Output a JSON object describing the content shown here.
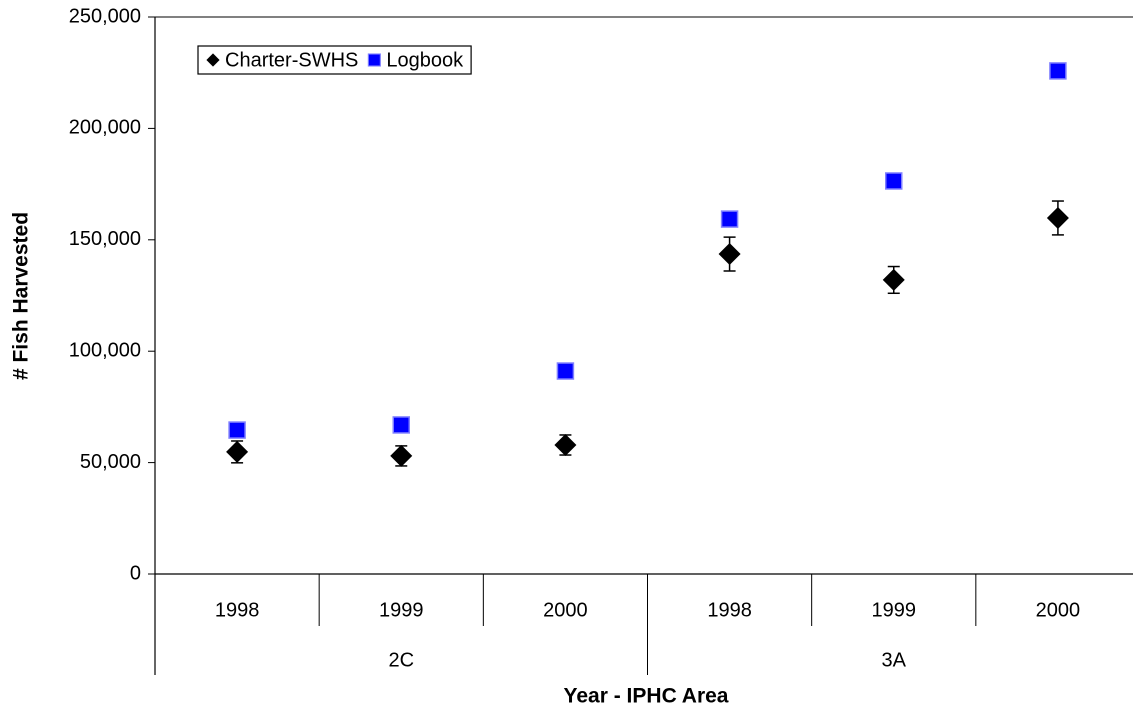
{
  "chart_data": {
    "type": "scatter",
    "x_label": "Year - IPHC Area",
    "y_label": "# Fish Harvested",
    "category_groups": [
      {
        "name": "2C",
        "categories": [
          "1998",
          "1999",
          "2000"
        ]
      },
      {
        "name": "3A",
        "categories": [
          "1998",
          "1999",
          "2000"
        ]
      }
    ],
    "series": [
      {
        "name": "Charter-SWHS",
        "marker": "diamond",
        "color": "#000000",
        "values": [
          54800,
          53000,
          57900,
          143600,
          132000,
          159800
        ],
        "errors": [
          4900,
          4500,
          4500,
          7600,
          6000,
          7600
        ]
      },
      {
        "name": "Logbook",
        "marker": "square",
        "color": "#0000ff",
        "values": [
          64600,
          66900,
          91100,
          159300,
          176400,
          225800
        ]
      }
    ],
    "ylim": [
      0,
      250000
    ],
    "yticks": [
      0,
      {
        "value": 50000,
        "label": "50,000"
      },
      {
        "value": 100000,
        "label": "100,000"
      },
      {
        "value": 150000,
        "label": "150,000"
      },
      {
        "value": 200000,
        "label": "200,000"
      },
      {
        "value": 250000,
        "label": "250,000"
      }
    ],
    "grid": false,
    "legend": "top-left"
  }
}
